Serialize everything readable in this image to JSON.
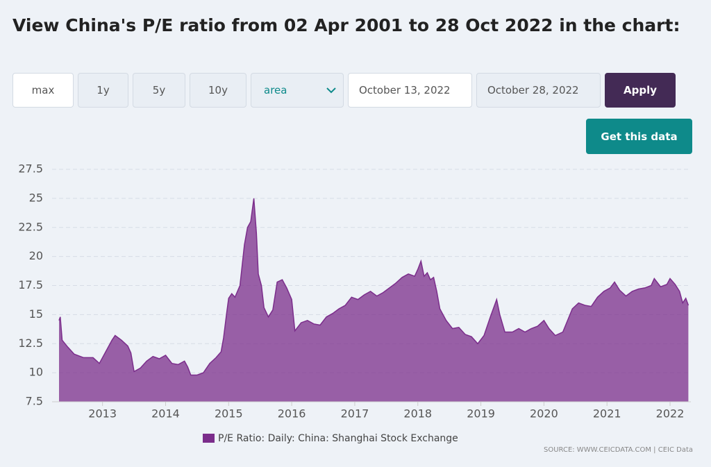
{
  "page": {
    "title": "View China's P/E ratio from 02 Apr 2001 to 28 Oct 2022 in the chart:"
  },
  "controls": {
    "range_buttons": [
      "max",
      "1y",
      "5y",
      "10y"
    ],
    "chart_type": "area",
    "date_from": "October 13, 2022",
    "date_to": "October 28, 2022",
    "apply": "Apply",
    "get_data": "Get this data"
  },
  "chart_data": {
    "type": "area",
    "x": [
      2012.31,
      2012.33,
      2012.36,
      2012.45,
      2012.55,
      2012.7,
      2012.85,
      2012.95,
      2013.05,
      2013.15,
      2013.2,
      2013.3,
      2013.4,
      2013.45,
      2013.5,
      2013.6,
      2013.7,
      2013.8,
      2013.9,
      2014.0,
      2014.1,
      2014.2,
      2014.3,
      2014.35,
      2014.4,
      2014.5,
      2014.6,
      2014.7,
      2014.8,
      2014.88,
      2014.92,
      2014.97,
      2015.0,
      2015.05,
      2015.1,
      2015.18,
      2015.25,
      2015.3,
      2015.35,
      2015.4,
      2015.44,
      2015.47,
      2015.52,
      2015.56,
      2015.63,
      2015.7,
      2015.77,
      2015.85,
      2015.92,
      2016.0,
      2016.05,
      2016.15,
      2016.25,
      2016.35,
      2016.45,
      2016.55,
      2016.65,
      2016.75,
      2016.85,
      2016.95,
      2017.05,
      2017.15,
      2017.25,
      2017.35,
      2017.45,
      2017.55,
      2017.65,
      2017.75,
      2017.85,
      2017.95,
      2018.0,
      2018.05,
      2018.1,
      2018.15,
      2018.2,
      2018.25,
      2018.3,
      2018.35,
      2018.45,
      2018.55,
      2018.65,
      2018.75,
      2018.85,
      2018.95,
      2019.05,
      2019.15,
      2019.25,
      2019.3,
      2019.38,
      2019.5,
      2019.6,
      2019.7,
      2019.8,
      2019.9,
      2020.0,
      2020.08,
      2020.18,
      2020.3,
      2020.45,
      2020.55,
      2020.65,
      2020.75,
      2020.85,
      2020.95,
      2021.05,
      2021.12,
      2021.2,
      2021.3,
      2021.4,
      2021.5,
      2021.6,
      2021.7,
      2021.75,
      2021.85,
      2021.95,
      2022.0,
      2022.08,
      2022.15,
      2022.2,
      2022.25,
      2022.29
    ],
    "series": [
      {
        "name": "P/E Ratio: Daily: China: Shanghai Stock Exchange",
        "color": "#7b2d8b",
        "values": [
          14.5,
          14.8,
          12.8,
          12.2,
          11.6,
          11.3,
          11.3,
          10.8,
          11.8,
          12.8,
          13.2,
          12.8,
          12.3,
          11.7,
          10.1,
          10.4,
          11.0,
          11.4,
          11.2,
          11.5,
          10.8,
          10.7,
          11.0,
          10.5,
          9.8,
          9.8,
          10.0,
          10.8,
          11.3,
          11.8,
          13.0,
          15.2,
          16.4,
          16.8,
          16.5,
          17.5,
          21.0,
          22.5,
          23.0,
          25.0,
          22.0,
          18.5,
          17.5,
          15.6,
          14.8,
          15.4,
          17.8,
          18.0,
          17.3,
          16.3,
          13.6,
          14.3,
          14.5,
          14.2,
          14.1,
          14.8,
          15.1,
          15.5,
          15.8,
          16.5,
          16.3,
          16.7,
          17.0,
          16.6,
          16.9,
          17.3,
          17.7,
          18.2,
          18.5,
          18.3,
          18.9,
          19.6,
          18.3,
          18.6,
          18.0,
          18.2,
          17.0,
          15.5,
          14.5,
          13.8,
          13.9,
          13.3,
          13.1,
          12.5,
          13.2,
          14.8,
          16.3,
          15.0,
          13.5,
          13.5,
          13.8,
          13.5,
          13.8,
          14.0,
          14.5,
          13.8,
          13.2,
          13.5,
          15.5,
          16.0,
          15.8,
          15.7,
          16.5,
          17.0,
          17.3,
          17.8,
          17.1,
          16.6,
          17.0,
          17.2,
          17.3,
          17.5,
          18.1,
          17.4,
          17.6,
          18.1,
          17.6,
          17.0,
          16.0,
          16.4,
          15.8
        ]
      }
    ],
    "xlim": [
      2012.31,
      2022.33
    ],
    "xticks": [
      2013,
      2014,
      2015,
      2016,
      2017,
      2018,
      2019,
      2020,
      2021,
      2022
    ],
    "ylim": [
      7.5,
      27.5
    ],
    "yticks": [
      7.5,
      10,
      12.5,
      15,
      17.5,
      20,
      22.5,
      25,
      27.5
    ],
    "grid": true,
    "source": "SOURCE: WWW.CEICDATA.COM | CEIC Data"
  }
}
